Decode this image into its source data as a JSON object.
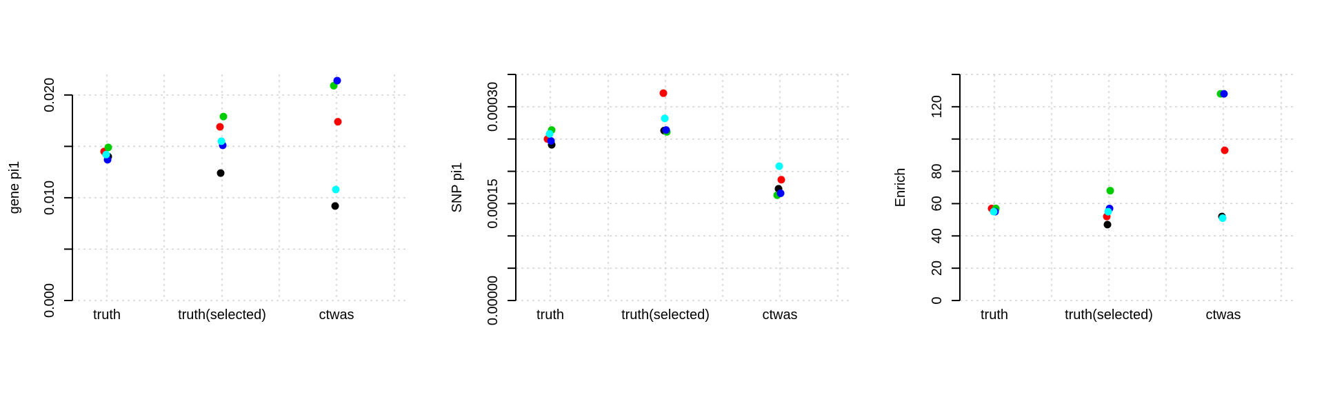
{
  "chart_data": [
    {
      "type": "scatter",
      "title": "",
      "xlabel": "",
      "ylabel": "gene pi1",
      "categories": [
        "truth",
        "truth(selected)",
        "ctwas"
      ],
      "ylim": [
        0,
        0.022
      ],
      "y_ticks": [
        0.0,
        0.005,
        0.01,
        0.015,
        0.02
      ],
      "y_tick_labels": [
        "0.000",
        "",
        "0.010",
        "",
        "0.020"
      ],
      "grid": true,
      "series": [
        {
          "color": "#000000",
          "values": [
            0.014,
            0.0124,
            0.0092
          ]
        },
        {
          "color": "#ff0000",
          "values": [
            0.0145,
            0.0169,
            0.0174
          ]
        },
        {
          "color": "#00cd00",
          "values": [
            0.0149,
            0.0179,
            0.0209
          ]
        },
        {
          "color": "#0000ff",
          "values": [
            0.0137,
            0.0151,
            0.0214
          ]
        },
        {
          "color": "#00ffff",
          "values": [
            0.0142,
            0.0155,
            0.0108
          ]
        }
      ]
    },
    {
      "type": "scatter",
      "title": "",
      "xlabel": "",
      "ylabel": "SNP pi1",
      "categories": [
        "truth",
        "truth(selected)",
        "ctwas"
      ],
      "ylim": [
        0,
        0.00035
      ],
      "y_ticks": [
        0.0,
        5e-05,
        0.0001,
        0.00015,
        0.0002,
        0.00025,
        0.0003,
        0.00035
      ],
      "y_tick_labels": [
        "0.00000",
        "",
        "",
        "0.00015",
        "",
        "",
        "0.00030",
        ""
      ],
      "grid": true,
      "series": [
        {
          "color": "#000000",
          "values": [
            0.000241,
            0.000263,
            0.000173
          ]
        },
        {
          "color": "#ff0000",
          "values": [
            0.00025,
            0.000321,
            0.000187
          ]
        },
        {
          "color": "#00cd00",
          "values": [
            0.000264,
            0.000261,
            0.000163
          ]
        },
        {
          "color": "#0000ff",
          "values": [
            0.000247,
            0.000264,
            0.000166
          ]
        },
        {
          "color": "#00ffff",
          "values": [
            0.000258,
            0.000282,
            0.000208
          ]
        }
      ]
    },
    {
      "type": "scatter",
      "title": "",
      "xlabel": "",
      "ylabel": "Enrich",
      "categories": [
        "truth",
        "truth(selected)",
        "ctwas"
      ],
      "ylim": [
        0,
        140
      ],
      "y_ticks": [
        0,
        20,
        40,
        60,
        80,
        100,
        120,
        140
      ],
      "y_tick_labels": [
        "0",
        "20",
        "40",
        "60",
        "80",
        "",
        "120",
        ""
      ],
      "grid": true,
      "series": [
        {
          "color": "#000000",
          "values": [
            57,
            47,
            52
          ]
        },
        {
          "color": "#ff0000",
          "values": [
            57,
            52,
            93
          ]
        },
        {
          "color": "#00cd00",
          "values": [
            57,
            68,
            128
          ]
        },
        {
          "color": "#0000ff",
          "values": [
            55,
            57,
            128
          ]
        },
        {
          "color": "#00ffff",
          "values": [
            55,
            55,
            51
          ]
        }
      ]
    }
  ]
}
